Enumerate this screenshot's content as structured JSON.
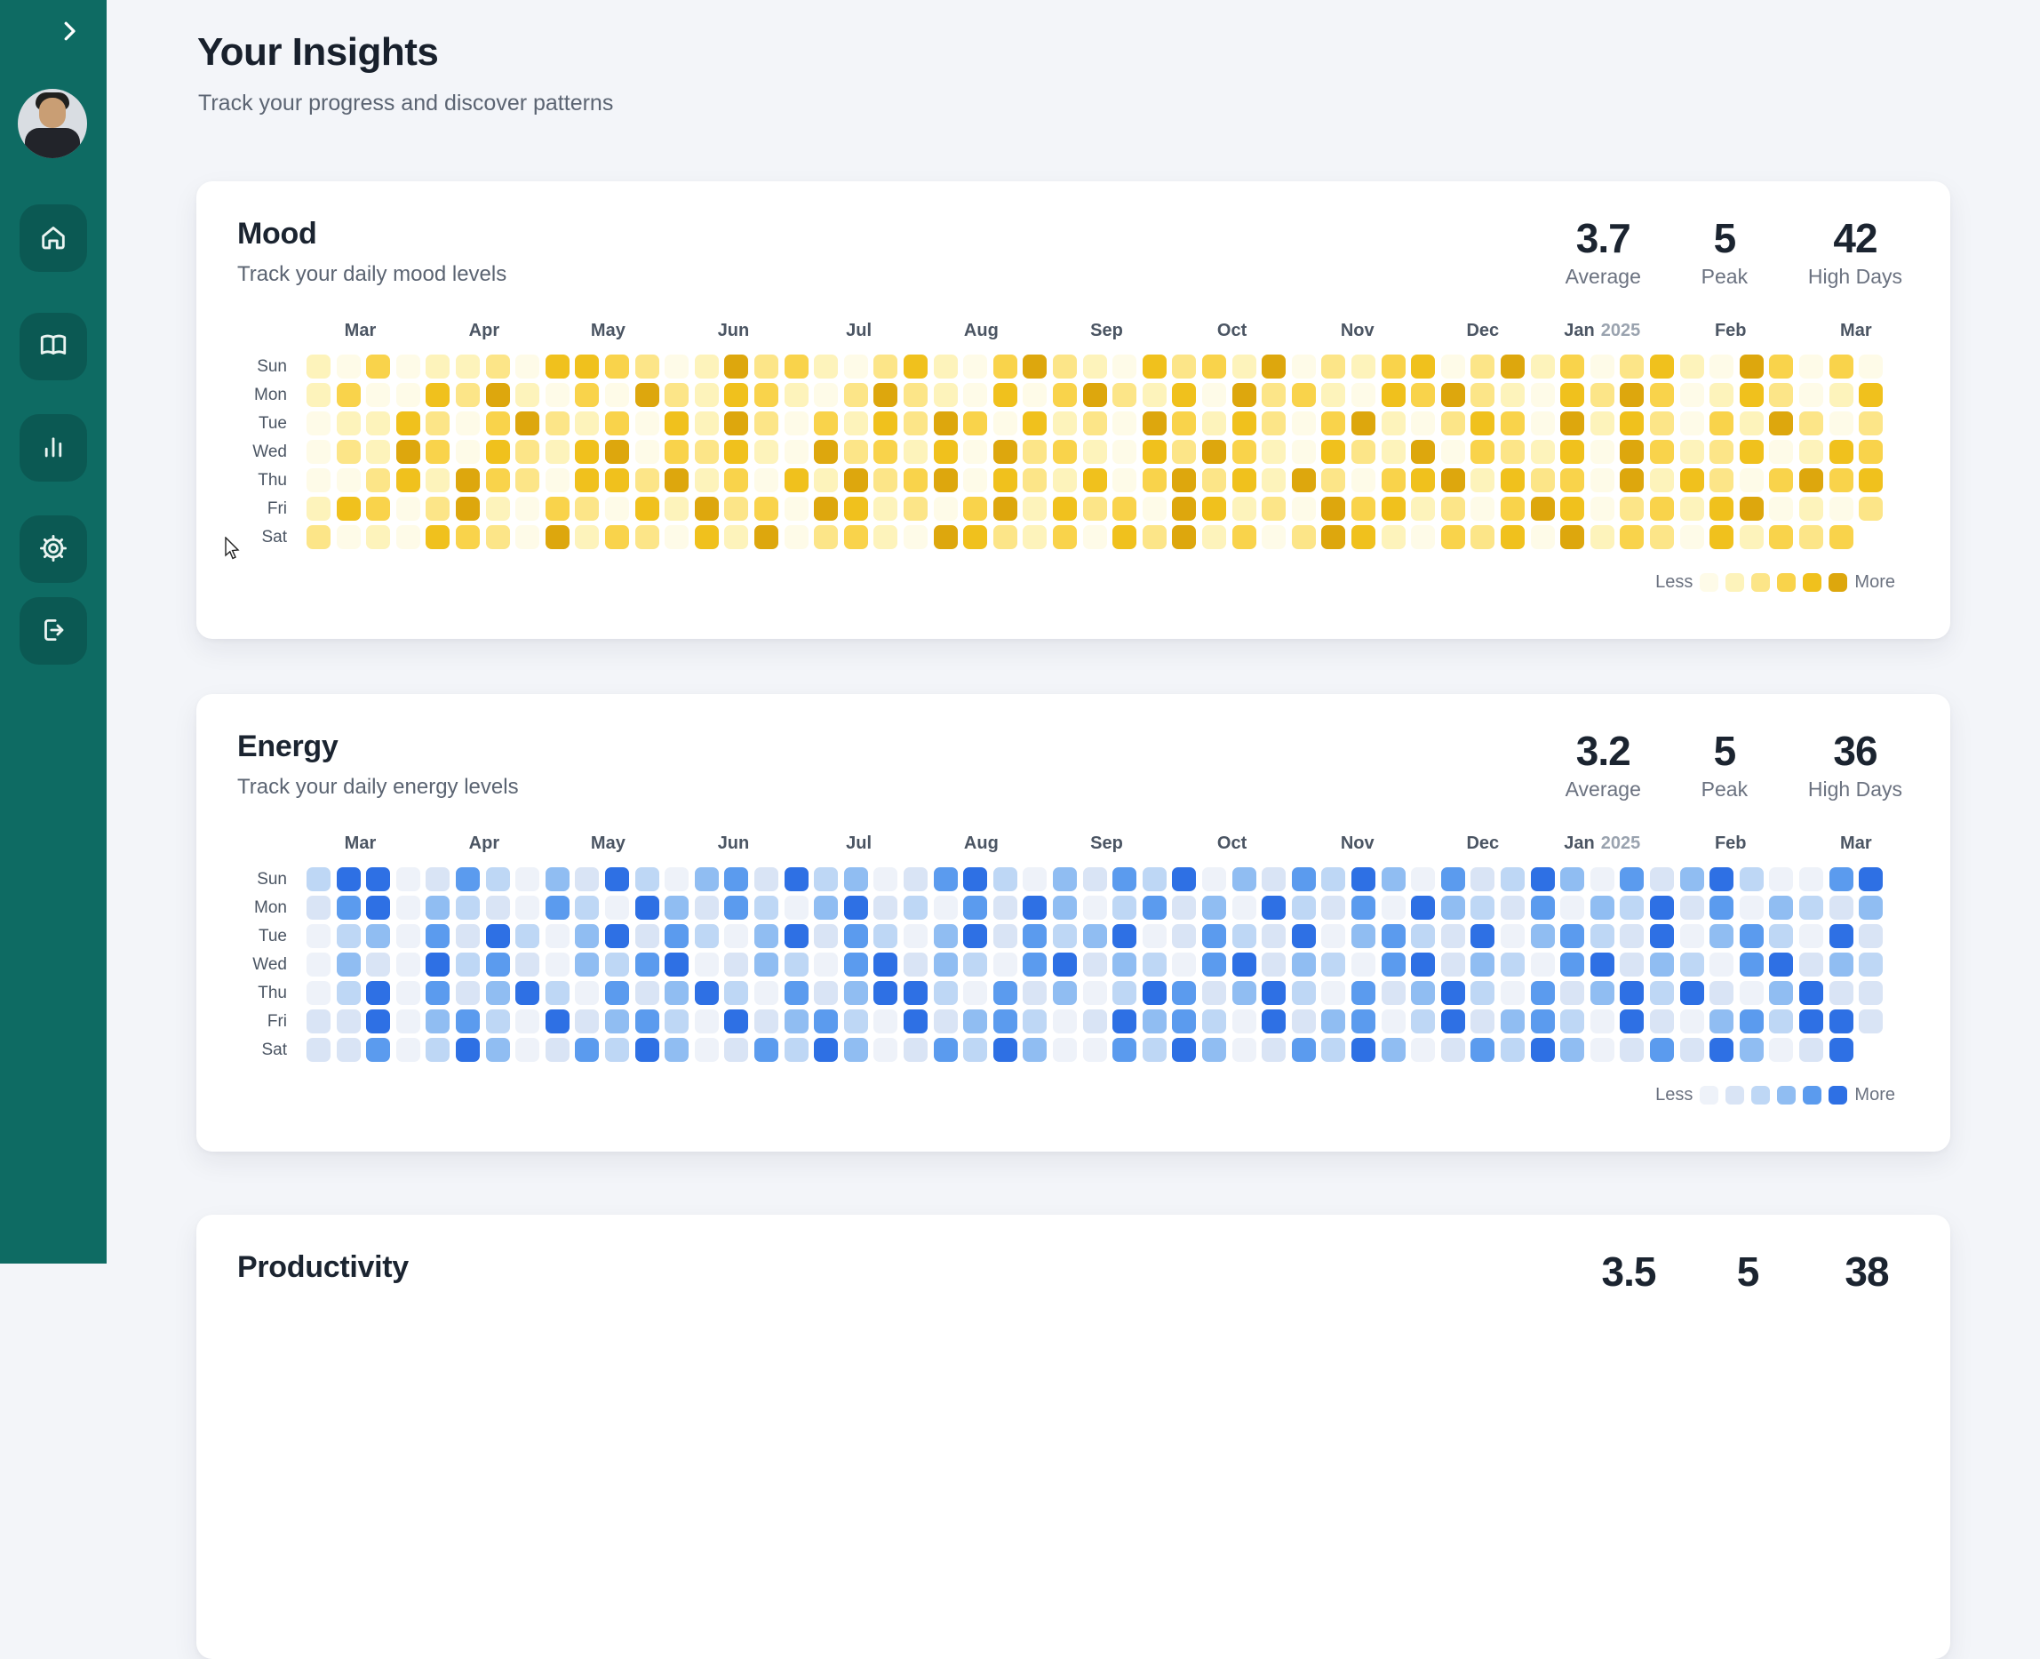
{
  "page": {
    "title": "Your Insights",
    "subtitle": "Track your progress and discover patterns"
  },
  "theme": {
    "sidebar_bg": "#0e6b63",
    "sidebar_button_bg": "rgba(0,0,0,0.16)",
    "page_bg": "#f3f5f9",
    "card_bg": "#ffffff",
    "text_dark": "#1b2430",
    "text_muted": "#6b7280",
    "mood_accent": "#dda70d",
    "energy_accent": "#2e70e4"
  },
  "sidebar": {
    "collapse_icon": "chevron-right-icon",
    "nav": [
      {
        "id": "home",
        "icon": "home-icon"
      },
      {
        "id": "journal",
        "icon": "book-open-icon"
      },
      {
        "id": "insights",
        "icon": "bar-chart-icon"
      },
      {
        "id": "settings",
        "icon": "gear-icon"
      },
      {
        "id": "logout",
        "icon": "logout-icon"
      }
    ]
  },
  "cards": [
    {
      "title": "Mood",
      "subtitle": "Track your daily mood levels",
      "stats": [
        {
          "value": "3.7",
          "label": "Average"
        },
        {
          "value": "5",
          "label": "Peak"
        },
        {
          "value": "42",
          "label": "High Days"
        }
      ],
      "chart_data": {
        "type": "heatmap",
        "legend_less": "Less",
        "legend_more": "More",
        "palette": [
          "#fefbe8",
          "#fdf3bb",
          "#fce588",
          "#f9d34b",
          "#f0c11d",
          "#dda70d"
        ],
        "day_labels": [
          "Sun",
          "Mon",
          "Tue",
          "Wed",
          "Thu",
          "Fri",
          "Sat"
        ],
        "months": [
          {
            "label": "Mar",
            "col": 1.8
          },
          {
            "label": "Apr",
            "col": 5.95
          },
          {
            "label": "May",
            "col": 10.1
          },
          {
            "label": "Jun",
            "col": 14.3
          },
          {
            "label": "Jul",
            "col": 18.5
          },
          {
            "label": "Aug",
            "col": 22.6
          },
          {
            "label": "Sep",
            "col": 26.8
          },
          {
            "label": "Oct",
            "col": 31.0
          },
          {
            "label": "Nov",
            "col": 35.2
          },
          {
            "label": "Dec",
            "col": 39.4
          },
          {
            "label": "Jan",
            "year": "2025",
            "col": 43.4
          },
          {
            "label": "Feb",
            "col": 47.7
          },
          {
            "label": "Mar",
            "col": 51.9
          }
        ],
        "rows": [
          "10301120443201523102410352104231502134025130241053030",
          "13004251030521431025210403521405231043521042530142014",
          "01142035213041520314253041205314203510243051420315202",
          "02153042145032410523140523104253104215032140531240143",
          "00241532044251304152350421403524152034514230514203534",
          "14302510320415230541203514230541205341203540231450102",
          "2010432051320415023105421304251302541032405132041323."
        ]
      }
    },
    {
      "title": "Energy",
      "subtitle": "Track your daily energy levels",
      "stats": [
        {
          "value": "3.2",
          "label": "Average"
        },
        {
          "value": "5",
          "label": "Peak"
        },
        {
          "value": "36",
          "label": "High Days"
        }
      ],
      "chart_data": {
        "type": "heatmap",
        "legend_less": "Less",
        "legend_more": "More",
        "palette": [
          "#eef2f9",
          "#d9e4f5",
          "#bed7f5",
          "#90bdf2",
          "#5b9bee",
          "#2e70e4"
        ],
        "day_labels": [
          "Sun",
          "Mon",
          "Tue",
          "Wed",
          "Thu",
          "Fri",
          "Sat"
        ],
        "months": [
          {
            "label": "Mar",
            "col": 1.8
          },
          {
            "label": "Apr",
            "col": 5.95
          },
          {
            "label": "May",
            "col": 10.1
          },
          {
            "label": "Jun",
            "col": 14.3
          },
          {
            "label": "Jul",
            "col": 18.5
          },
          {
            "label": "Aug",
            "col": 22.6
          },
          {
            "label": "Sep",
            "col": 26.8
          },
          {
            "label": "Oct",
            "col": 31.0
          },
          {
            "label": "Nov",
            "col": 35.2
          },
          {
            "label": "Dec",
            "col": 39.4
          },
          {
            "label": "Jan",
            "year": "2025",
            "col": 43.4
          },
          {
            "label": "Feb",
            "col": 47.7
          },
          {
            "label": "Mar",
            "col": 51.9
          }
        ],
        "rows": [
          "25501420315203415230145203142503142530412530413520045",
          "14503210420531420351204153024130521405321403251403213",
          "02304152035142035142035142350142150342150342150342051",
          "03105241032450132045132045132045132045132045132045132",
          "02504135204135204135520413025413520413520413525103511",
          "11503420513420513420513420153420513402513420510342551",
          "1140253014253014253014253004253014253014253014153015."
        ]
      }
    },
    {
      "title": "Productivity",
      "stats": [
        {
          "value": "3.5"
        },
        {
          "value": "5"
        },
        {
          "value": "38"
        }
      ]
    }
  ]
}
